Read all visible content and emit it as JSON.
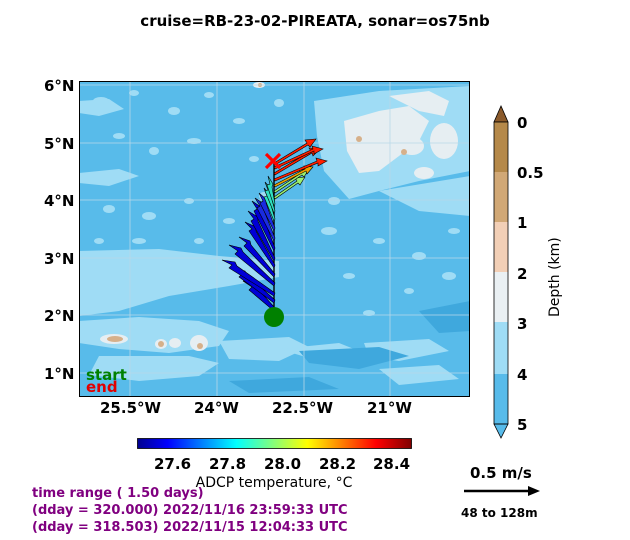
{
  "title": "cruise=RB-23-02-PIREATA,   sonar=os75nb",
  "map": {
    "lat_ticks": [
      "6°N",
      "5°N",
      "4°N",
      "3°N",
      "2°N",
      "1°N"
    ],
    "lon_ticks": [
      "25.5°W",
      "24°W",
      "22.5°W",
      "21°W"
    ],
    "legend": {
      "start": "start",
      "end": "end"
    },
    "colors": {
      "deep": "#58bbea",
      "mid": "#9fdcf5",
      "shallow": "#e6eef2",
      "land_tan": "#d6b08a",
      "start_marker": "#008000",
      "end_marker": "#ff0000"
    }
  },
  "depth_colorbar": {
    "label": "Depth (km)",
    "ticks": [
      "0",
      "0.5",
      "1",
      "2",
      "3",
      "4",
      "5"
    ],
    "colors": [
      "#b5894a",
      "#d1a876",
      "#f2cfb6",
      "#eaf0f3",
      "#9fdcf5",
      "#58bbea"
    ]
  },
  "temp_colorbar": {
    "label": "ADCP temperature, °C",
    "ticks": [
      "27.6",
      "27.8",
      "28.0",
      "28.2",
      "28.4"
    ]
  },
  "scale": {
    "speed": "0.5 m/s",
    "range": "48 to 128m"
  },
  "time_info": {
    "line1": "time range ( 1.50 days)",
    "line2": "(dday = 320.000) 2022/11/16 23:59:33 UTC",
    "line3": "(dday = 318.503) 2022/11/15 12:04:33 UTC"
  }
}
